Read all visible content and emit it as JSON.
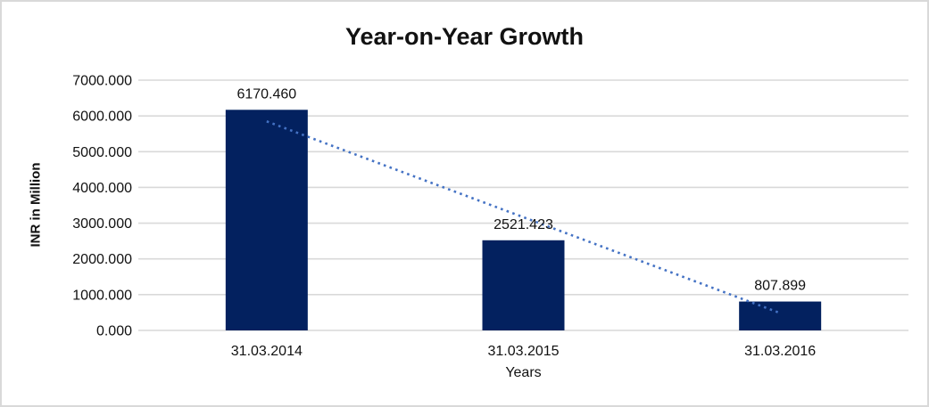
{
  "frame": {
    "background_color": "#ffffff",
    "border_color": "#d9d9d9"
  },
  "chart_data": {
    "type": "bar",
    "title": "Year-on-Year Growth",
    "xlabel": "Years",
    "ylabel": "INR in Million",
    "categories": [
      "31.03.2014",
      "31.03.2015",
      "31.03.2016"
    ],
    "values": [
      6170.46,
      2521.423,
      807.899
    ],
    "data_labels": [
      "6170.460",
      "2521.423",
      "807.899"
    ],
    "ylim": [
      0,
      7000
    ],
    "ytick_step": 1000,
    "ytick_labels": [
      "0.000",
      "1000.000",
      "2000.000",
      "3000.000",
      "4000.000",
      "5000.000",
      "6000.000",
      "7000.000"
    ],
    "grid": true,
    "legend_position": "none",
    "bar_color": "#03215f",
    "gridline_color": "#d9d9d9",
    "text_color": "#111111",
    "trendline": {
      "type": "linear",
      "style": "dotted",
      "color": "#4472c4",
      "values": [
        5847.87,
        3166.59,
        485.31
      ]
    }
  }
}
